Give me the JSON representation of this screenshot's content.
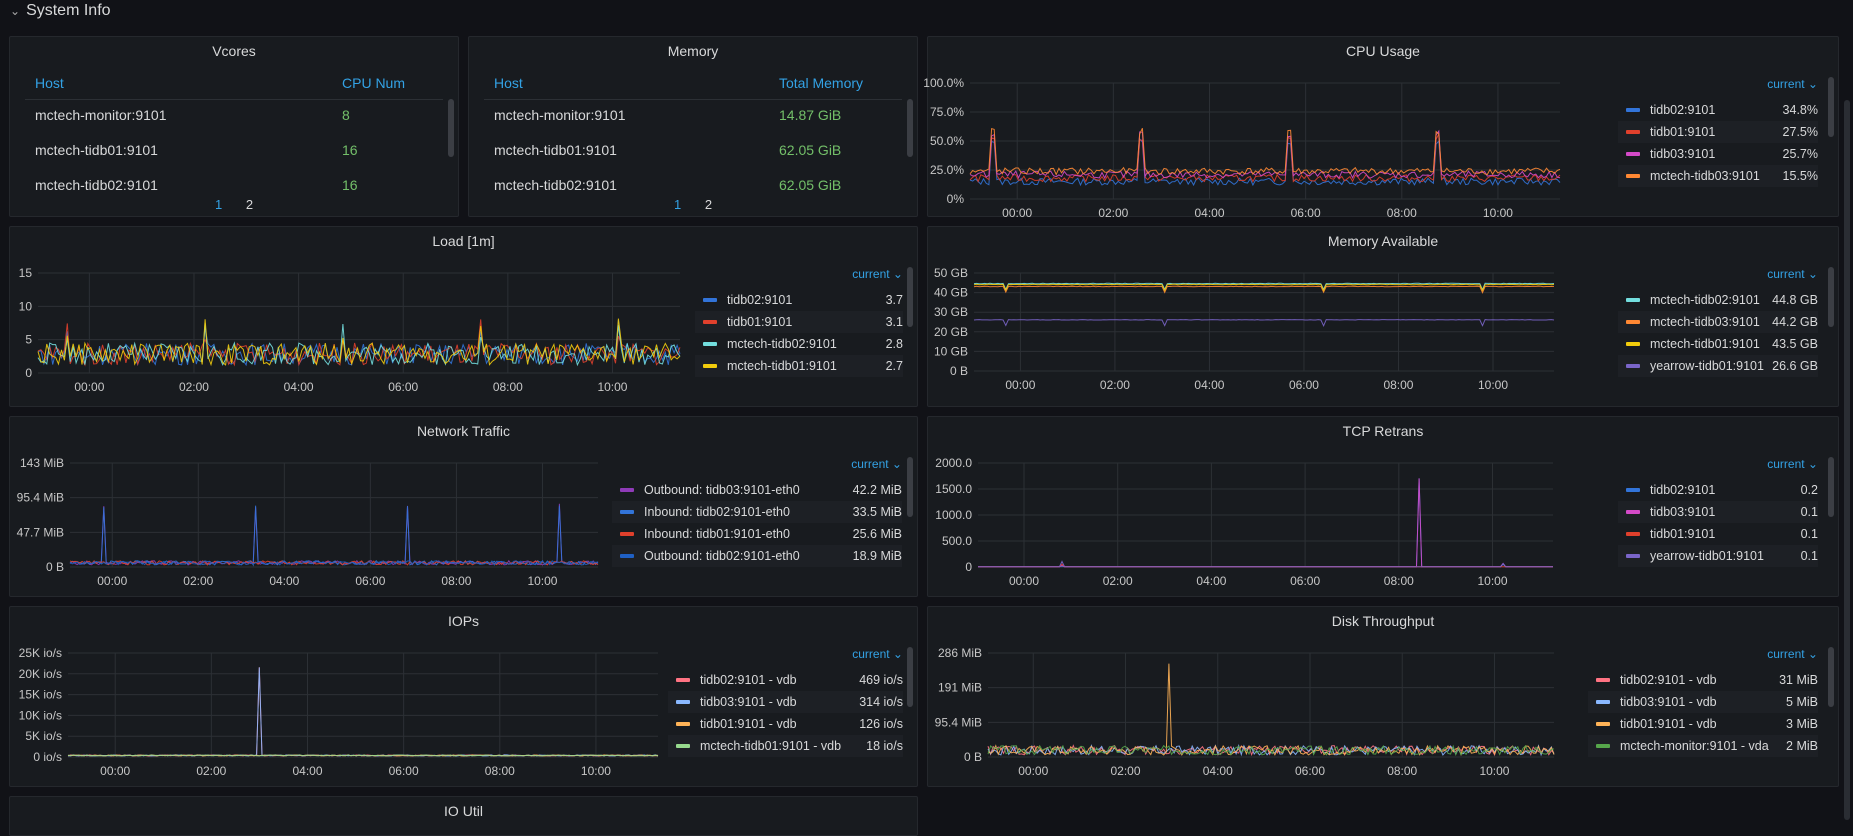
{
  "row": {
    "title": "System Info",
    "chevron": "chevron-down-icon"
  },
  "vcores": {
    "title": "Vcores",
    "headers": [
      "Host",
      "CPU Num"
    ],
    "rows": [
      [
        "mctech-monitor:9101",
        "8"
      ],
      [
        "mctech-tidb01:9101",
        "16"
      ],
      [
        "mctech-tidb02:9101",
        "16"
      ]
    ],
    "pages": [
      "1",
      "2"
    ]
  },
  "memory": {
    "title": "Memory",
    "headers": [
      "Host",
      "Total Memory"
    ],
    "rows": [
      [
        "mctech-monitor:9101",
        "14.87 GiB"
      ],
      [
        "mctech-tidb01:9101",
        "62.05 GiB"
      ],
      [
        "mctech-tidb02:9101",
        "62.05 GiB"
      ]
    ],
    "pages": [
      "1",
      "2"
    ]
  },
  "legend_header": "current",
  "x_ticks": [
    "00:00",
    "02:00",
    "04:00",
    "06:00",
    "08:00",
    "10:00"
  ],
  "panels": {
    "cpu": {
      "title": "CPU Usage",
      "y_ticks": [
        "100.0%",
        "75.0%",
        "50.0%",
        "25.0%",
        "0%"
      ],
      "legend": [
        {
          "name": "tidb02:9101",
          "value": "34.8%",
          "color": "#3274d9"
        },
        {
          "name": "tidb01:9101",
          "value": "27.5%",
          "color": "#e0402c"
        },
        {
          "name": "tidb03:9101",
          "value": "25.7%",
          "color": "#d44ac8"
        },
        {
          "name": "mctech-tidb03:9101",
          "value": "15.5%",
          "color": "#ff8833"
        }
      ]
    },
    "load": {
      "title": "Load [1m]",
      "y_ticks": [
        "15",
        "10",
        "5",
        "0"
      ],
      "legend": [
        {
          "name": "tidb02:9101",
          "value": "3.7",
          "color": "#3274d9"
        },
        {
          "name": "tidb01:9101",
          "value": "3.1",
          "color": "#e0402c"
        },
        {
          "name": "mctech-tidb02:9101",
          "value": "2.8",
          "color": "#73dede"
        },
        {
          "name": "mctech-tidb01:9101",
          "value": "2.7",
          "color": "#f2cc0c"
        }
      ]
    },
    "memavail": {
      "title": "Memory Available",
      "y_ticks": [
        "50 GB",
        "40 GB",
        "30 GB",
        "20 GB",
        "10 GB",
        "0 B"
      ],
      "legend": [
        {
          "name": "mctech-tidb02:9101",
          "value": "44.8 GB",
          "color": "#73dede"
        },
        {
          "name": "mctech-tidb03:9101",
          "value": "44.2 GB",
          "color": "#ff8833"
        },
        {
          "name": "mctech-tidb01:9101",
          "value": "43.5 GB",
          "color": "#f2cc0c"
        },
        {
          "name": "yearrow-tidb01:9101",
          "value": "26.6 GB",
          "color": "#7a65c9"
        }
      ]
    },
    "network": {
      "title": "Network Traffic",
      "y_ticks": [
        "143 MiB",
        "95.4 MiB",
        "47.7 MiB",
        "0 B"
      ],
      "legend": [
        {
          "name": "Outbound: tidb03:9101-eth0",
          "value": "42.2 MiB",
          "color": "#8f3bb8"
        },
        {
          "name": "Inbound: tidb02:9101-eth0",
          "value": "33.5 MiB",
          "color": "#3274d9"
        },
        {
          "name": "Inbound: tidb01:9101-eth0",
          "value": "25.6 MiB",
          "color": "#e0402c"
        },
        {
          "name": "Outbound: tidb02:9101-eth0",
          "value": "18.9 MiB",
          "color": "#1f60c4"
        }
      ]
    },
    "tcp": {
      "title": "TCP Retrans",
      "y_ticks": [
        "2000.0",
        "1500.0",
        "1000.0",
        "500.0",
        "0"
      ],
      "legend": [
        {
          "name": "tidb02:9101",
          "value": "0.2",
          "color": "#3274d9"
        },
        {
          "name": "tidb03:9101",
          "value": "0.1",
          "color": "#d44ac8"
        },
        {
          "name": "tidb01:9101",
          "value": "0.1",
          "color": "#e0402c"
        },
        {
          "name": "yearrow-tidb01:9101",
          "value": "0.1",
          "color": "#7a65c9"
        }
      ]
    },
    "iops": {
      "title": "IOPs",
      "y_ticks": [
        "25K io/s",
        "20K io/s",
        "15K io/s",
        "10K io/s",
        "5K io/s",
        "0 io/s"
      ],
      "legend": [
        {
          "name": "tidb02:9101 - vdb",
          "value": "469 io/s",
          "color": "#ff7383"
        },
        {
          "name": "tidb03:9101 - vdb",
          "value": "314 io/s",
          "color": "#8ab8ff"
        },
        {
          "name": "tidb01:9101 - vdb",
          "value": "126 io/s",
          "color": "#ffb357"
        },
        {
          "name": "mctech-tidb01:9101 - vdb",
          "value": "18 io/s",
          "color": "#96d98d"
        }
      ]
    },
    "disk": {
      "title": "Disk Throughput",
      "y_ticks": [
        "286 MiB",
        "191 MiB",
        "95.4 MiB",
        "0 B"
      ],
      "legend": [
        {
          "name": "tidb02:9101 - vdb",
          "value": "31 MiB",
          "color": "#ff7383"
        },
        {
          "name": "tidb03:9101 - vdb",
          "value": "5 MiB",
          "color": "#8ab8ff"
        },
        {
          "name": "tidb01:9101 - vdb",
          "value": "3 MiB",
          "color": "#ffb357"
        },
        {
          "name": "mctech-monitor:9101 - vda",
          "value": "2 MiB",
          "color": "#56a64b"
        }
      ]
    },
    "ioutil": {
      "title": "IO Util"
    }
  }
}
